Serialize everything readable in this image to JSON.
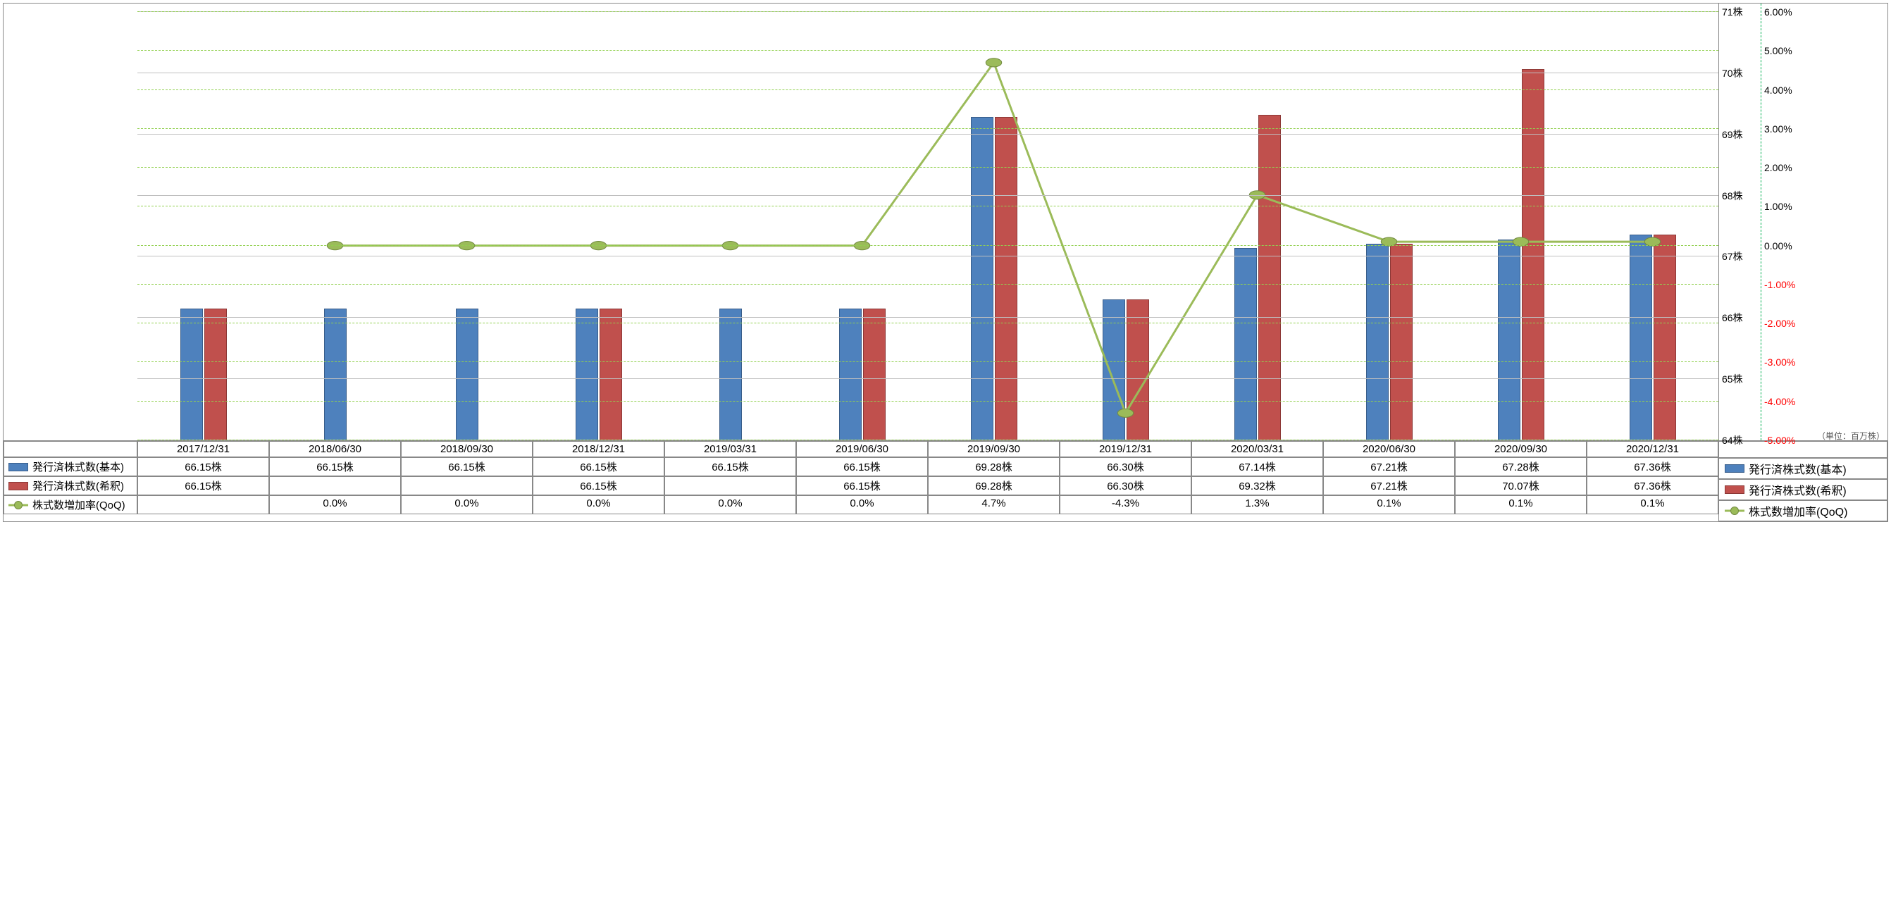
{
  "chart": {
    "type": "bar+line",
    "background_color": "#ffffff",
    "grid_major_color": "#bfbfbf",
    "grid_minor_color": "#92d050",
    "bar_blue_color": "#4e81bd",
    "bar_red_color": "#c0504d",
    "line_color": "#9bbb59",
    "marker_size": 12,
    "line_width": 3,
    "unit_note": "（単位：百万株）",
    "y_left": {
      "min": 64,
      "max": 71,
      "step": 1,
      "suffix": "株",
      "ticks": [
        "64株",
        "65株",
        "66株",
        "67株",
        "68株",
        "69株",
        "70株",
        "71株"
      ]
    },
    "y_right": {
      "min": -5,
      "max": 6,
      "step": 1,
      "ticks": [
        {
          "v": 6.0,
          "label": "6.00%",
          "color": "#000000"
        },
        {
          "v": 5.0,
          "label": "5.00%",
          "color": "#000000"
        },
        {
          "v": 4.0,
          "label": "4.00%",
          "color": "#000000"
        },
        {
          "v": 3.0,
          "label": "3.00%",
          "color": "#000000"
        },
        {
          "v": 2.0,
          "label": "2.00%",
          "color": "#000000"
        },
        {
          "v": 1.0,
          "label": "1.00%",
          "color": "#000000"
        },
        {
          "v": 0.0,
          "label": "0.00%",
          "color": "#000000"
        },
        {
          "v": -1.0,
          "label": "-1.00%",
          "color": "#ff0000"
        },
        {
          "v": -2.0,
          "label": "-2.00%",
          "color": "#ff0000"
        },
        {
          "v": -3.0,
          "label": "-3.00%",
          "color": "#ff0000"
        },
        {
          "v": -4.0,
          "label": "-4.00%",
          "color": "#ff0000"
        },
        {
          "v": -5.0,
          "label": "-5.00%",
          "color": "#ff0000"
        }
      ]
    },
    "periods": [
      "2017/12/31",
      "2018/06/30",
      "2018/09/30",
      "2018/12/31",
      "2019/03/31",
      "2019/06/30",
      "2019/09/30",
      "2019/12/31",
      "2020/03/31",
      "2020/06/30",
      "2020/09/30",
      "2020/12/31"
    ],
    "series": {
      "basic": {
        "name": "発行済株式数(基本)",
        "color": "#4e81bd",
        "values": [
          66.15,
          66.15,
          66.15,
          66.15,
          66.15,
          66.15,
          69.28,
          66.3,
          67.14,
          67.21,
          67.28,
          67.36
        ],
        "display": [
          "66.15株",
          "66.15株",
          "66.15株",
          "66.15株",
          "66.15株",
          "66.15株",
          "69.28株",
          "66.30株",
          "67.14株",
          "67.21株",
          "67.28株",
          "67.36株"
        ]
      },
      "diluted": {
        "name": "発行済株式数(希釈)",
        "color": "#c0504d",
        "values": [
          66.15,
          null,
          null,
          66.15,
          null,
          66.15,
          69.28,
          66.3,
          69.32,
          67.21,
          70.07,
          67.36
        ],
        "display": [
          "66.15株",
          "",
          "",
          "66.15株",
          "",
          "66.15株",
          "69.28株",
          "66.30株",
          "69.32株",
          "67.21株",
          "70.07株",
          "67.36株"
        ]
      },
      "qoq": {
        "name": "株式数増加率(QoQ)",
        "color": "#9bbb59",
        "values": [
          null,
          0.0,
          0.0,
          0.0,
          0.0,
          0.0,
          4.7,
          -4.3,
          1.3,
          0.1,
          0.1,
          0.1
        ],
        "display": [
          "",
          "0.0%",
          "0.0%",
          "0.0%",
          "0.0%",
          "0.0%",
          "4.7%",
          "-4.3%",
          "1.3%",
          "0.1%",
          "0.1%",
          "0.1%"
        ]
      }
    },
    "legend_right": {
      "basic": "発行済株式数(基本)",
      "diluted": "発行済株式数(希釈)",
      "qoq": "株式数増加率(QoQ)"
    }
  }
}
